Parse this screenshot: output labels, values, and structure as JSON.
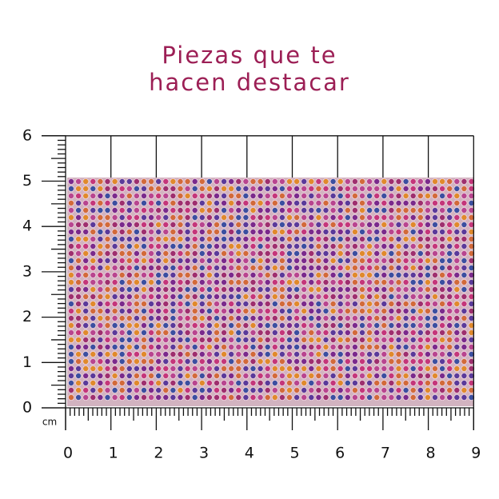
{
  "header": {
    "title_lines": [
      "Piezas que te",
      "hacen destacar"
    ]
  },
  "ruler": {
    "unit": "cm",
    "x_labels": [
      "0",
      "1",
      "2",
      "3",
      "4",
      "5",
      "6",
      "7",
      "8",
      "9"
    ],
    "y_labels": [
      "0",
      "1",
      "2",
      "3",
      "4",
      "5",
      "6"
    ]
  }
}
